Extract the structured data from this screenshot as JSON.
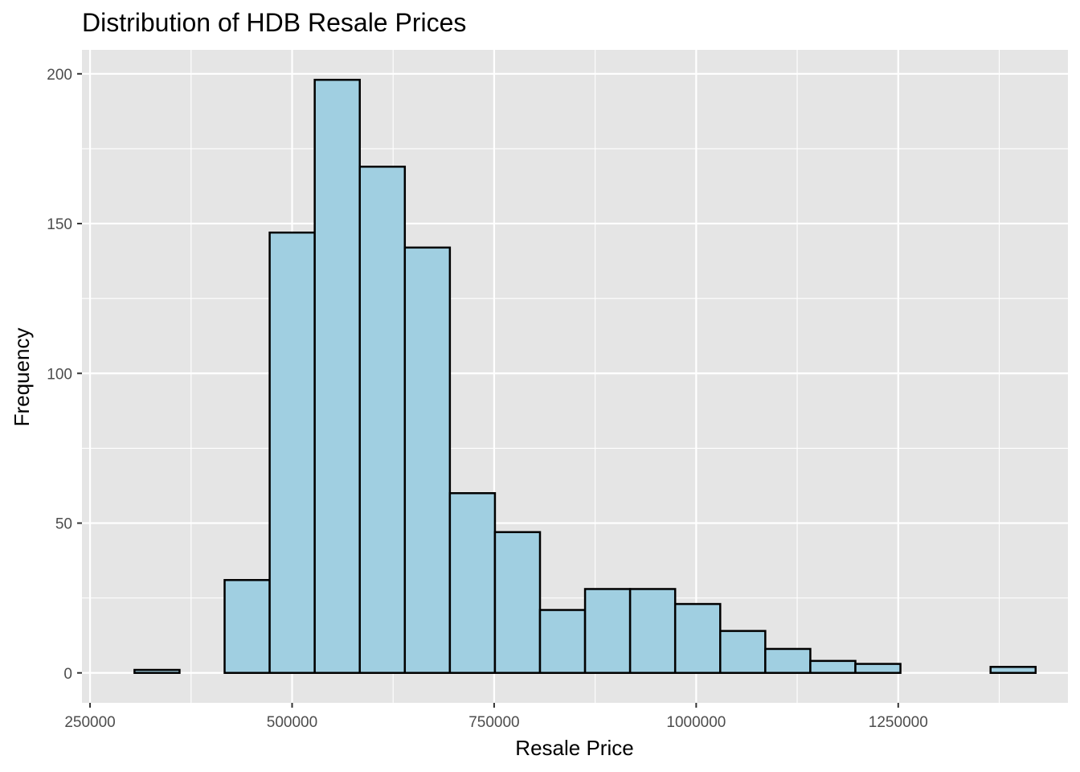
{
  "chart_data": {
    "type": "bar",
    "title": "Distribution of HDB Resale Prices",
    "xlabel": "Resale Price",
    "ylabel": "Frequency",
    "xlim": [
      240000,
      1460000
    ],
    "ylim": [
      -10,
      208
    ],
    "x_major_ticks": [
      250000,
      500000,
      750000,
      1000000,
      1250000
    ],
    "x_tick_labels": [
      "250000",
      "500000",
      "750000",
      "1000000",
      "1250000"
    ],
    "x_minor_ticks": [
      375000,
      625000,
      875000,
      1125000,
      1375000
    ],
    "y_major_ticks": [
      0,
      50,
      100,
      150,
      200
    ],
    "y_tick_labels": [
      "0",
      "50",
      "100",
      "150",
      "200"
    ],
    "y_minor_ticks": [
      25,
      75,
      125,
      175
    ],
    "grid": true,
    "bin_width": 55750,
    "bins": [
      {
        "x0": 305000,
        "x1": 360750,
        "count": 1
      },
      {
        "x0": 360750,
        "x1": 416500,
        "count": 0
      },
      {
        "x0": 416500,
        "x1": 472250,
        "count": 31
      },
      {
        "x0": 472250,
        "x1": 528000,
        "count": 147
      },
      {
        "x0": 528000,
        "x1": 583750,
        "count": 198
      },
      {
        "x0": 583750,
        "x1": 639500,
        "count": 169
      },
      {
        "x0": 639500,
        "x1": 695250,
        "count": 142
      },
      {
        "x0": 695250,
        "x1": 751000,
        "count": 60
      },
      {
        "x0": 751000,
        "x1": 806750,
        "count": 47
      },
      {
        "x0": 806750,
        "x1": 862500,
        "count": 21
      },
      {
        "x0": 862500,
        "x1": 918250,
        "count": 28
      },
      {
        "x0": 918250,
        "x1": 974000,
        "count": 28
      },
      {
        "x0": 974000,
        "x1": 1029750,
        "count": 23
      },
      {
        "x0": 1029750,
        "x1": 1085500,
        "count": 14
      },
      {
        "x0": 1085500,
        "x1": 1141250,
        "count": 8
      },
      {
        "x0": 1141250,
        "x1": 1197000,
        "count": 4
      },
      {
        "x0": 1197000,
        "x1": 1252750,
        "count": 3
      },
      {
        "x0": 1252750,
        "x1": 1308500,
        "count": 0
      },
      {
        "x0": 1308500,
        "x1": 1364250,
        "count": 0
      },
      {
        "x0": 1364250,
        "x1": 1420000,
        "count": 2
      }
    ],
    "colors": {
      "bar_fill": "#a0cfe1",
      "bar_stroke": "#000000",
      "panel": "#e5e5e5",
      "grid": "#ffffff"
    }
  }
}
